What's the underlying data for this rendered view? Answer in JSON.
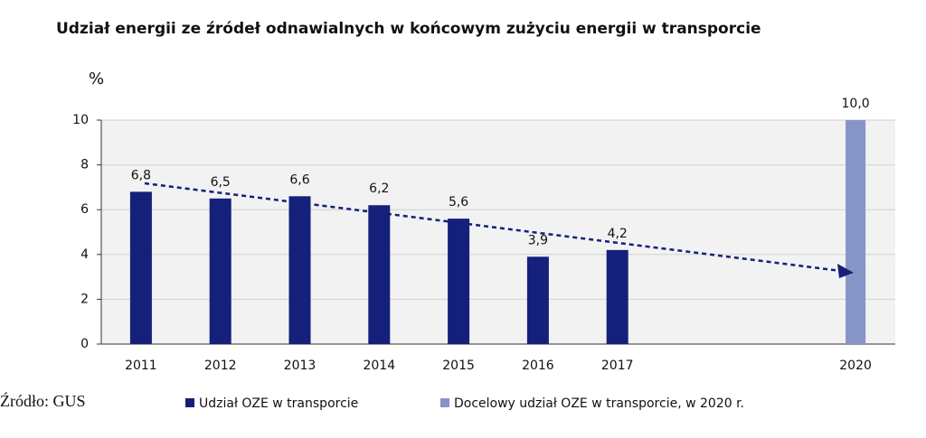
{
  "chart_data": {
    "type": "bar",
    "title": "Udział energii ze źródeł odnawialnych w końcowym zużyciu energii w transporcie",
    "y_label": "%",
    "source": "Źródło: GUS",
    "categories": [
      "2011",
      "2012",
      "2013",
      "2014",
      "2015",
      "2016",
      "2017",
      null,
      null,
      "2020"
    ],
    "series": [
      {
        "name": "Udział OZE w transporcie",
        "color": "#14207a",
        "values": [
          6.8,
          6.5,
          6.6,
          6.2,
          5.6,
          3.9,
          4.2,
          null,
          null,
          null
        ],
        "value_labels": [
          "6,8",
          "6,5",
          "6,6",
          "6,2",
          "5,6",
          "3,9",
          "4,2",
          null,
          null,
          null
        ]
      },
      {
        "name": "Docelowy udział OZE w transporcie, w 2020 r.",
        "color": "#8794c8",
        "values": [
          null,
          null,
          null,
          null,
          null,
          null,
          null,
          null,
          null,
          10.0
        ],
        "value_labels": [
          null,
          null,
          null,
          null,
          null,
          null,
          null,
          null,
          null,
          "10,0"
        ]
      }
    ],
    "ylim": [
      0,
      10
    ],
    "yticks": [
      0,
      2,
      4,
      6,
      8,
      10
    ],
    "grid": true
  }
}
